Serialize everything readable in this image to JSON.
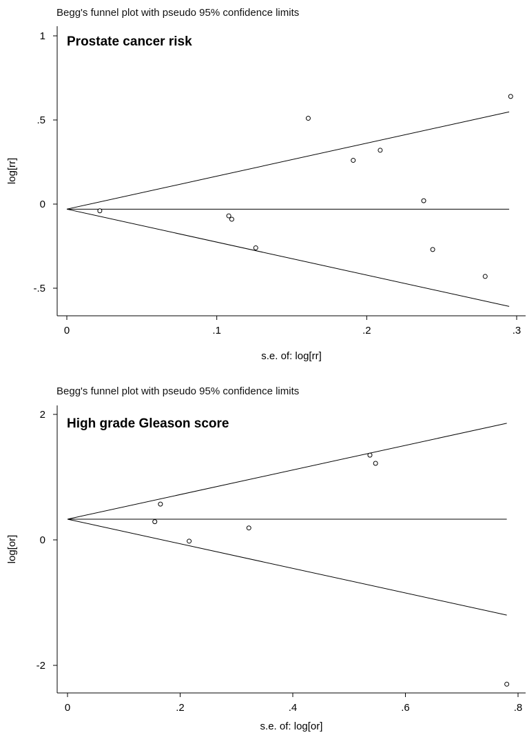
{
  "chart_data": [
    {
      "type": "scatter",
      "heading": "Begg's funnel plot with pseudo 95% confidence limits",
      "panel_label": "Prostate cancer risk",
      "xlabel": "s.e. of: log[rr]",
      "ylabel": "log[rr]",
      "xlim": [
        0,
        0.3
      ],
      "ylim": [
        -0.65,
        1.0
      ],
      "xticks": [
        {
          "value": 0,
          "label": "0"
        },
        {
          "value": 0.1,
          "label": ".1"
        },
        {
          "value": 0.2,
          "label": ".2"
        },
        {
          "value": 0.3,
          "label": ".3"
        }
      ],
      "yticks": [
        {
          "value": 1,
          "label": "1"
        },
        {
          "value": 0.5,
          "label": ".5"
        },
        {
          "value": 0,
          "label": "0"
        },
        {
          "value": -0.5,
          "label": "-.5"
        }
      ],
      "pooled_estimate": -0.03,
      "line_x_max": 0.295,
      "points": [
        {
          "x": 0.022,
          "y": -0.04
        },
        {
          "x": 0.108,
          "y": -0.07
        },
        {
          "x": 0.11,
          "y": -0.09
        },
        {
          "x": 0.126,
          "y": -0.26
        },
        {
          "x": 0.161,
          "y": 0.51
        },
        {
          "x": 0.191,
          "y": 0.26
        },
        {
          "x": 0.209,
          "y": 0.32
        },
        {
          "x": 0.238,
          "y": 0.02
        },
        {
          "x": 0.244,
          "y": -0.27
        },
        {
          "x": 0.279,
          "y": -0.43
        },
        {
          "x": 0.296,
          "y": 0.64
        }
      ]
    },
    {
      "type": "scatter",
      "heading": "Begg's funnel plot with pseudo 95% confidence limits",
      "panel_label": "High grade Gleason score",
      "xlabel": "s.e. of: log[or]",
      "ylabel": "log[or]",
      "xlim": [
        0,
        0.8
      ],
      "ylim": [
        -2.5,
        2.1
      ],
      "xticks": [
        {
          "value": 0,
          "label": "0"
        },
        {
          "value": 0.2,
          "label": ".2"
        },
        {
          "value": 0.4,
          "label": ".4"
        },
        {
          "value": 0.6,
          "label": ".6"
        },
        {
          "value": 0.8,
          "label": ".8"
        }
      ],
      "yticks": [
        {
          "value": 2,
          "label": "2"
        },
        {
          "value": 0,
          "label": "0"
        },
        {
          "value": -2,
          "label": "-2"
        }
      ],
      "pooled_estimate": 0.33,
      "line_x_max": 0.78,
      "points": [
        {
          "x": 0.155,
          "y": 0.29
        },
        {
          "x": 0.165,
          "y": 0.57
        },
        {
          "x": 0.216,
          "y": -0.02
        },
        {
          "x": 0.322,
          "y": 0.19
        },
        {
          "x": 0.537,
          "y": 1.35
        },
        {
          "x": 0.547,
          "y": 1.22
        },
        {
          "x": 0.78,
          "y": -2.3
        }
      ]
    }
  ]
}
